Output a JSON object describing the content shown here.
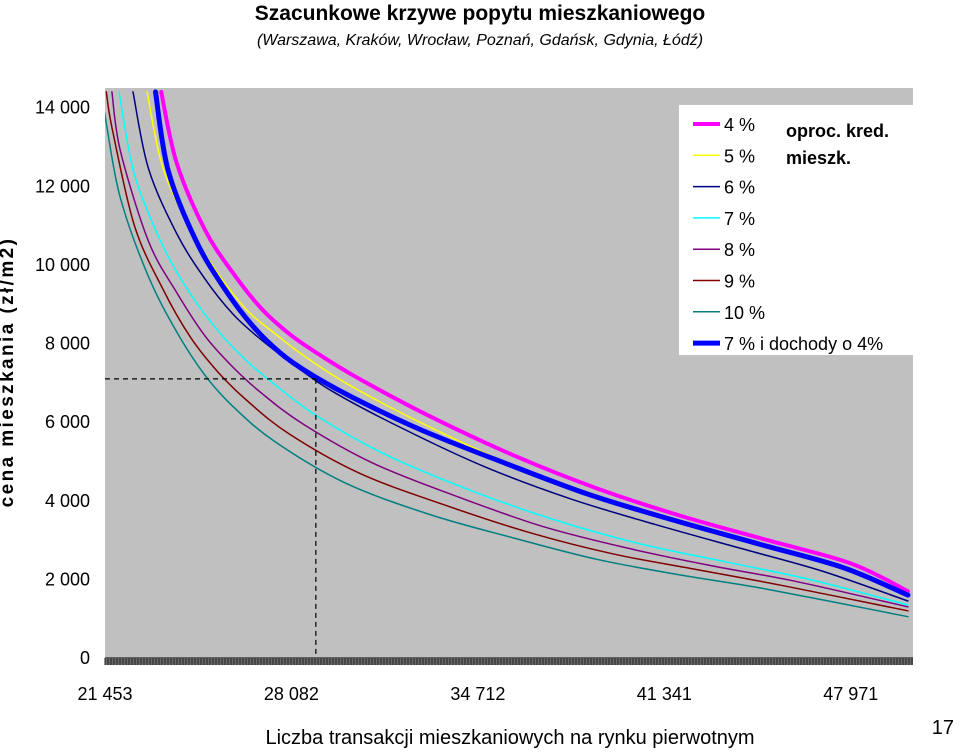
{
  "chart_data": {
    "type": "line",
    "title": "Szacunkowe krzywe popytu mieszkaniowego",
    "subtitle": "(Warszawa, Kraków, Wrocław, Poznań, Gdańsk, Gdynia, Łódź)",
    "xlabel": "Liczba transakcji mieszkaniowych na rynku pierwotnym",
    "ylabel": "cena mieszkania (zł/m2)",
    "xlim": [
      21453,
      50183
    ],
    "ylim": [
      0,
      14500
    ],
    "x_ticks": [
      21453,
      28082,
      34712,
      41341,
      47971
    ],
    "x_tick_labels": [
      "21 453",
      "28 082",
      "34 712",
      "41 341",
      "47 971"
    ],
    "y_ticks": [
      0,
      2000,
      4000,
      6000,
      8000,
      10000,
      12000,
      14000
    ],
    "y_tick_labels": [
      "0",
      "2 000",
      "4 000",
      "6 000",
      "8 000",
      "10 000",
      "12 000",
      "14 000"
    ],
    "legend_position": "top-right",
    "legend_note": [
      "oproc. kred.",
      "mieszk."
    ],
    "reference": {
      "x": 28950,
      "y": 7100
    },
    "series": [
      {
        "name": "4 %",
        "color": "#ff00ff",
        "width": 4,
        "x": [
          23450,
          24000,
          25000,
          26000,
          27000,
          28000,
          29000,
          30500,
          33000,
          36000,
          39000,
          42000,
          45000,
          48000,
          50000
        ],
        "y": [
          14400,
          12600,
          10900,
          9800,
          8900,
          8250,
          7750,
          7100,
          6150,
          5150,
          4300,
          3600,
          3000,
          2400,
          1700
        ]
      },
      {
        "name": "5 %",
        "color": "#ffff00",
        "width": 1.5,
        "x": [
          22950,
          23500,
          24500,
          25500,
          26500,
          27500,
          28500,
          30000,
          32500,
          35500,
          38500,
          41500,
          44500,
          47500,
          50000
        ],
        "y": [
          14400,
          12500,
          10900,
          9750,
          8850,
          8250,
          7700,
          7000,
          6050,
          5050,
          4250,
          3550,
          2950,
          2350,
          1650
        ]
      },
      {
        "name": "6 %",
        "color": "#000080",
        "width": 1.5,
        "x": [
          22450,
          23000,
          24000,
          25000,
          26000,
          27000,
          28000,
          29500,
          32000,
          35000,
          38000,
          41000,
          44000,
          47000,
          50000
        ],
        "y": [
          14400,
          12450,
          10800,
          9650,
          8750,
          8100,
          7550,
          6800,
          5850,
          4850,
          4050,
          3400,
          2800,
          2200,
          1450
        ]
      },
      {
        "name": "7 %",
        "color": "#00ffff",
        "width": 1.5,
        "x": [
          21950,
          22500,
          23500,
          24500,
          25500,
          26500,
          27500,
          29000,
          31500,
          34500,
          37500,
          40500,
          43500,
          46500,
          50000
        ],
        "y": [
          14400,
          12300,
          10500,
          9250,
          8300,
          7550,
          6950,
          6150,
          5150,
          4250,
          3500,
          2900,
          2450,
          2000,
          1350
        ]
      },
      {
        "name": "8 %",
        "color": "#800080",
        "width": 1.5,
        "x": [
          21700,
          22000,
          23000,
          24000,
          25000,
          26000,
          27000,
          28500,
          31000,
          34000,
          37000,
          40000,
          43000,
          46000,
          50000
        ],
        "y": [
          14400,
          12900,
          10600,
          9300,
          8200,
          7400,
          6750,
          5950,
          4950,
          4100,
          3350,
          2800,
          2350,
          1950,
          1300
        ]
      },
      {
        "name": "9 %",
        "color": "#800000",
        "width": 1.5,
        "x": [
          21500,
          21700,
          22500,
          23500,
          24500,
          25500,
          26500,
          28000,
          30500,
          33500,
          36500,
          39500,
          42500,
          45500,
          50000
        ],
        "y": [
          14400,
          13500,
          11000,
          9400,
          8150,
          7250,
          6550,
          5700,
          4700,
          3900,
          3200,
          2650,
          2250,
          1850,
          1200
        ]
      },
      {
        "name": "10 %",
        "color": "#008080",
        "width": 1.5,
        "x": [
          21330,
          21500,
          22000,
          23000,
          24000,
          25000,
          26000,
          27500,
          30000,
          33000,
          36000,
          39000,
          42000,
          45000,
          50000
        ],
        "y": [
          14400,
          13600,
          11700,
          9700,
          8300,
          7200,
          6400,
          5500,
          4450,
          3650,
          3050,
          2500,
          2100,
          1750,
          1050
        ]
      },
      {
        "name": "7 % i dochody o 4%",
        "color": "#0000ff",
        "width": 5,
        "x": [
          23250,
          23700,
          24700,
          25700,
          26700,
          27700,
          28700,
          30200,
          32700,
          35700,
          38700,
          41700,
          44700,
          47700,
          50000
        ],
        "y": [
          14400,
          12400,
          10600,
          9400,
          8450,
          7750,
          7250,
          6650,
          5800,
          4950,
          4150,
          3500,
          2900,
          2300,
          1600
        ]
      }
    ]
  },
  "page_number": "17"
}
